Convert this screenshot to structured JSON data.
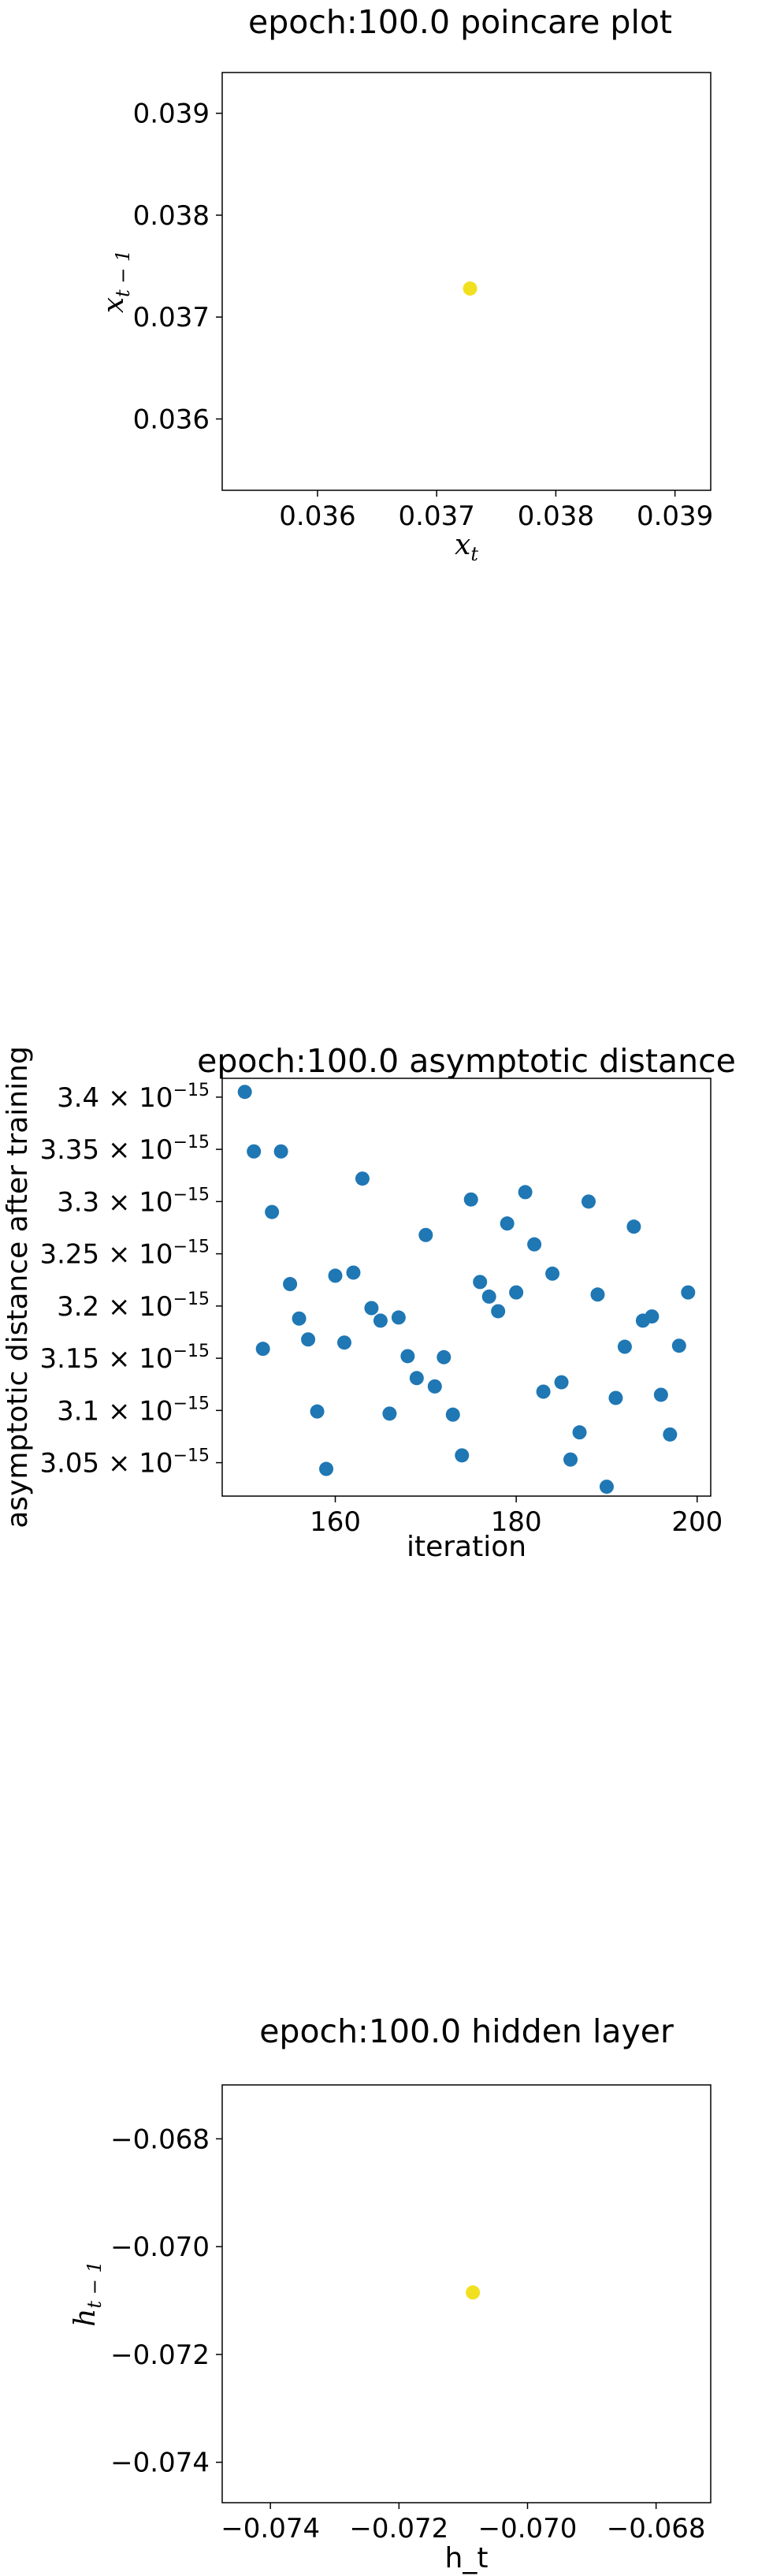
{
  "chart_data": [
    {
      "type": "scatter",
      "title": "epoch:100.0 poincare plot",
      "xlabel": "x_t",
      "ylabel": "x_{t-1}",
      "xlim": [
        0.0352,
        0.0393
      ],
      "ylim": [
        0.0353,
        0.0394
      ],
      "xticks": [
        0.036,
        0.037,
        0.038,
        0.039
      ],
      "yticks": [
        0.036,
        0.037,
        0.038,
        0.039
      ],
      "xtick_labels": [
        "0.036",
        "0.037",
        "0.038",
        "0.039"
      ],
      "ytick_labels": [
        "0.036",
        "0.037",
        "0.038",
        "0.039"
      ],
      "grid": false,
      "color": "#f0e020",
      "points": [
        [
          0.03728,
          0.03728
        ]
      ]
    },
    {
      "type": "scatter",
      "title": "epoch:100.0 asymptotic distance",
      "xlabel": "iteration",
      "ylabel": "asymptotic distance after training",
      "xlim": [
        147.5,
        201.5
      ],
      "ylim": [
        3.018,
        3.418
      ],
      "y_exponent": "-15",
      "xticks": [
        160,
        180,
        200
      ],
      "yticks": [
        3.05,
        3.1,
        3.15,
        3.2,
        3.25,
        3.3,
        3.35,
        3.4
      ],
      "xtick_labels": [
        "160",
        "180",
        "200"
      ],
      "ytick_labels": [
        "3.05",
        "3.1",
        "3.15",
        "3.2",
        "3.25",
        "3.3",
        "3.35",
        "3.4"
      ],
      "grid": false,
      "color": "#1f77b4",
      "x": [
        150,
        151,
        152,
        153,
        154,
        155,
        156,
        157,
        158,
        159,
        160,
        161,
        162,
        163,
        164,
        165,
        166,
        167,
        168,
        169,
        170,
        171,
        172,
        173,
        174,
        175,
        176,
        177,
        178,
        179,
        180,
        181,
        182,
        183,
        184,
        185,
        186,
        187,
        188,
        189,
        190,
        191,
        192,
        193,
        194,
        195,
        196,
        197,
        198,
        199
      ],
      "y": [
        3.405,
        3.348,
        3.159,
        3.29,
        3.348,
        3.221,
        3.188,
        3.168,
        3.099,
        3.044,
        3.229,
        3.165,
        3.232,
        3.322,
        3.198,
        3.186,
        3.097,
        3.189,
        3.152,
        3.131,
        3.268,
        3.123,
        3.151,
        3.096,
        3.057,
        3.302,
        3.223,
        3.209,
        3.195,
        3.279,
        3.213,
        3.309,
        3.259,
        3.118,
        3.231,
        3.127,
        3.053,
        3.079,
        3.3,
        3.211,
        3.027,
        3.112,
        3.161,
        3.276,
        3.186,
        3.19,
        3.115,
        3.077,
        3.162,
        3.213
      ]
    },
    {
      "type": "scatter",
      "title": "epoch:100.0 hidden layer",
      "xlabel": "h_t",
      "ylabel": "h_{t-1}",
      "xlim": [
        -0.07475,
        -0.06715
      ],
      "ylim": [
        -0.07475,
        -0.067
      ],
      "xticks": [
        -0.074,
        -0.072,
        -0.07,
        -0.068
      ],
      "yticks": [
        -0.074,
        -0.072,
        -0.07,
        -0.068
      ],
      "xtick_labels": [
        "−0.074",
        "−0.072",
        "−0.070",
        "−0.068"
      ],
      "ytick_labels": [
        "−0.074",
        "−0.072",
        "−0.070",
        "−0.068"
      ],
      "grid": false,
      "color": "#f0e020",
      "points": [
        [
          -0.07085,
          -0.07085
        ]
      ]
    }
  ]
}
